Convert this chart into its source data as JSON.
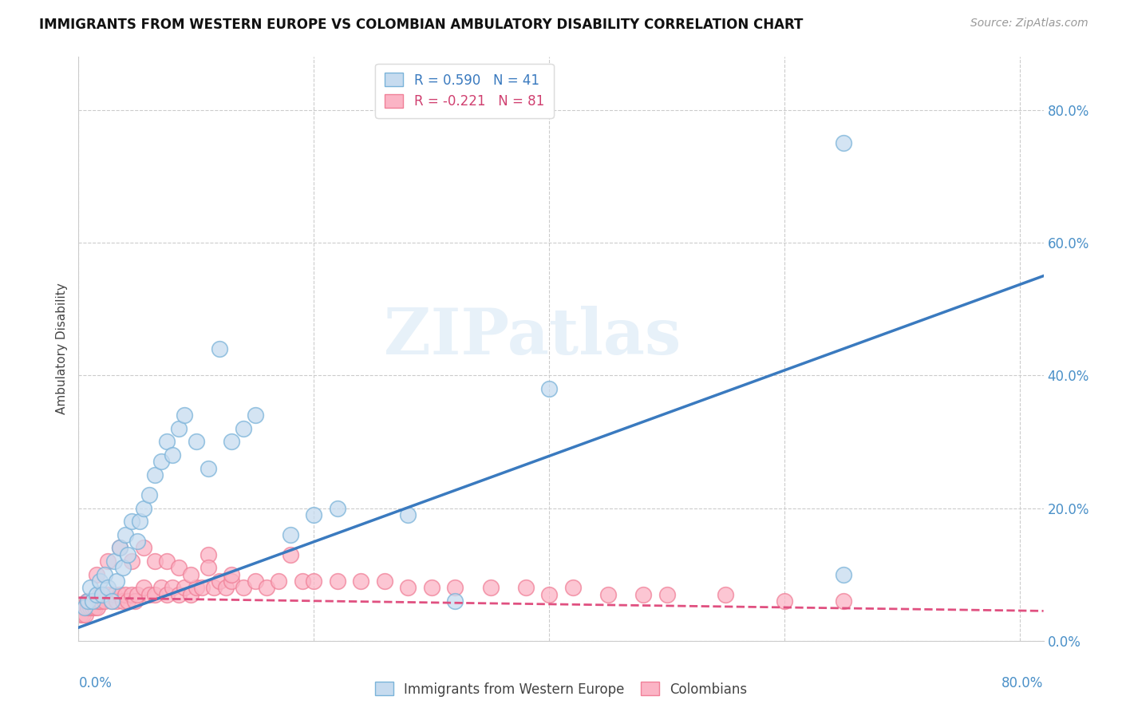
{
  "title": "IMMIGRANTS FROM WESTERN EUROPE VS COLOMBIAN AMBULATORY DISABILITY CORRELATION CHART",
  "source": "Source: ZipAtlas.com",
  "ylabel": "Ambulatory Disability",
  "legend1_label": "R = 0.590   N = 41",
  "legend2_label": "R = -0.221   N = 81",
  "legend_label_bottom1": "Immigrants from Western Europe",
  "legend_label_bottom2": "Colombians",
  "color_blue_line": "#3a7abf",
  "color_blue_face": "#c6dbef",
  "color_blue_edge": "#7ab3d9",
  "color_pink_line": "#e05080",
  "color_pink_face": "#fbb4c5",
  "color_pink_edge": "#f08098",
  "watermark": "ZIPatlas",
  "xlim": [
    0.0,
    0.82
  ],
  "ylim": [
    0.0,
    0.88
  ],
  "yticks": [
    0.0,
    0.2,
    0.4,
    0.6,
    0.8
  ],
  "xticks": [
    0.0,
    0.2,
    0.4,
    0.6,
    0.8
  ],
  "blue_scatter_x": [
    0.005,
    0.008,
    0.01,
    0.012,
    0.015,
    0.018,
    0.02,
    0.022,
    0.025,
    0.028,
    0.03,
    0.032,
    0.035,
    0.038,
    0.04,
    0.042,
    0.045,
    0.05,
    0.052,
    0.055,
    0.06,
    0.065,
    0.07,
    0.075,
    0.08,
    0.085,
    0.09,
    0.1,
    0.11,
    0.12,
    0.13,
    0.14,
    0.15,
    0.18,
    0.2,
    0.22,
    0.28,
    0.32,
    0.4,
    0.65,
    0.65
  ],
  "blue_scatter_y": [
    0.05,
    0.06,
    0.08,
    0.06,
    0.07,
    0.09,
    0.07,
    0.1,
    0.08,
    0.06,
    0.12,
    0.09,
    0.14,
    0.11,
    0.16,
    0.13,
    0.18,
    0.15,
    0.18,
    0.2,
    0.22,
    0.25,
    0.27,
    0.3,
    0.28,
    0.32,
    0.34,
    0.3,
    0.26,
    0.44,
    0.3,
    0.32,
    0.34,
    0.16,
    0.19,
    0.2,
    0.19,
    0.06,
    0.38,
    0.1,
    0.75
  ],
  "pink_scatter_x": [
    0.002,
    0.003,
    0.004,
    0.005,
    0.006,
    0.007,
    0.008,
    0.009,
    0.01,
    0.011,
    0.012,
    0.013,
    0.014,
    0.015,
    0.016,
    0.017,
    0.018,
    0.019,
    0.02,
    0.022,
    0.025,
    0.028,
    0.03,
    0.032,
    0.035,
    0.038,
    0.04,
    0.042,
    0.045,
    0.048,
    0.05,
    0.055,
    0.06,
    0.065,
    0.07,
    0.075,
    0.08,
    0.085,
    0.09,
    0.095,
    0.1,
    0.105,
    0.11,
    0.115,
    0.12,
    0.125,
    0.13,
    0.14,
    0.15,
    0.16,
    0.17,
    0.18,
    0.19,
    0.2,
    0.22,
    0.24,
    0.26,
    0.28,
    0.3,
    0.32,
    0.35,
    0.38,
    0.4,
    0.42,
    0.45,
    0.48,
    0.5,
    0.55,
    0.6,
    0.65,
    0.015,
    0.025,
    0.035,
    0.045,
    0.055,
    0.065,
    0.075,
    0.085,
    0.095,
    0.11,
    0.13
  ],
  "pink_scatter_y": [
    0.04,
    0.05,
    0.04,
    0.05,
    0.04,
    0.06,
    0.05,
    0.06,
    0.05,
    0.06,
    0.05,
    0.06,
    0.05,
    0.06,
    0.05,
    0.06,
    0.07,
    0.06,
    0.07,
    0.06,
    0.07,
    0.06,
    0.07,
    0.06,
    0.07,
    0.06,
    0.07,
    0.06,
    0.07,
    0.06,
    0.07,
    0.08,
    0.07,
    0.07,
    0.08,
    0.07,
    0.08,
    0.07,
    0.08,
    0.07,
    0.08,
    0.08,
    0.13,
    0.08,
    0.09,
    0.08,
    0.09,
    0.08,
    0.09,
    0.08,
    0.09,
    0.13,
    0.09,
    0.09,
    0.09,
    0.09,
    0.09,
    0.08,
    0.08,
    0.08,
    0.08,
    0.08,
    0.07,
    0.08,
    0.07,
    0.07,
    0.07,
    0.07,
    0.06,
    0.06,
    0.1,
    0.12,
    0.14,
    0.12,
    0.14,
    0.12,
    0.12,
    0.11,
    0.1,
    0.11,
    0.1
  ],
  "blue_line_x": [
    0.0,
    0.82
  ],
  "blue_line_y": [
    0.02,
    0.55
  ],
  "pink_line_x": [
    0.0,
    0.82
  ],
  "pink_line_y": [
    0.065,
    0.045
  ]
}
